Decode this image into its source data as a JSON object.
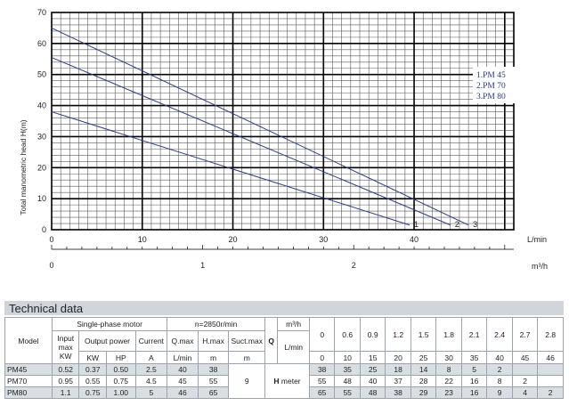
{
  "chart_data": {
    "type": "line",
    "y_axis_label": "Total manometric head H(m)",
    "x_axis_label": "L/min",
    "x2_axis_label": "m³/h",
    "x_ticks": [
      "0",
      "10",
      "20",
      "30",
      "40"
    ],
    "x2_ticks": [
      "0",
      "1",
      "2"
    ],
    "y_ticks": [
      "0",
      "10",
      "20",
      "30",
      "40",
      "50",
      "60",
      "70"
    ],
    "xlim": [
      0,
      51
    ],
    "ylim": [
      0,
      70
    ],
    "legend": [
      "1.PM 45",
      "2.PM 70",
      "3.PM 80"
    ],
    "legend_position": "right",
    "color": "#2e3c85",
    "grid": true,
    "series": [
      {
        "marker": "1",
        "x": [
          0,
          39.5
        ],
        "y": [
          38,
          1.5
        ]
      },
      {
        "marker": "2",
        "x": [
          0,
          44
        ],
        "y": [
          55.5,
          1.5
        ]
      },
      {
        "marker": "3",
        "x": [
          0,
          46
        ],
        "y": [
          65,
          1.5
        ]
      }
    ]
  },
  "section_title": "Technical data",
  "table": {
    "model_label": "Model",
    "single_phase_label": "Single-phase motor",
    "speed_label": "n=2850r/min",
    "input_label_lines": [
      "Input",
      "max",
      "KW"
    ],
    "output_power_label": "Output power",
    "current_label": "Current",
    "qmax_label": "Q.max",
    "hmax_label": "H.max",
    "suctmax_label": "Suct.max",
    "kw_unit": "KW",
    "hp_unit": "HP",
    "a_unit": "A",
    "lmin_unit": "L/min",
    "m_unit": "m",
    "m_unit2": "m",
    "q_label": "Q",
    "m3h_label": "m³/h",
    "lmin_label": "L/min",
    "h_meter_label_b": "H",
    "h_meter_label_n": " meter",
    "suction_value": "9",
    "flow_m3h": [
      "0",
      "0.6",
      "0.9",
      "1.2",
      "1.5",
      "1.8",
      "2.1",
      "2.4",
      "2.7",
      "2.8"
    ],
    "flow_lmin": [
      "0",
      "10",
      "15",
      "20",
      "25",
      "30",
      "35",
      "40",
      "45",
      "46"
    ],
    "rows": [
      {
        "model": "PM45",
        "input": "0.52",
        "kw": "0.37",
        "hp": "0.50",
        "current": "2.5",
        "qmax": "40",
        "hmax": "38",
        "heads": [
          "38",
          "35",
          "25",
          "18",
          "14",
          "8",
          "5",
          "2",
          "",
          ""
        ]
      },
      {
        "model": "PM70",
        "input": "0.95",
        "kw": "0.55",
        "hp": "0.75",
        "current": "4.5",
        "qmax": "45",
        "hmax": "55",
        "heads": [
          "55",
          "48",
          "40",
          "37",
          "28",
          "22",
          "16",
          "8",
          "2",
          ""
        ]
      },
      {
        "model": "PM80",
        "input": "1.1",
        "kw": "0.75",
        "hp": "1.00",
        "current": "5",
        "qmax": "46",
        "hmax": "65",
        "heads": [
          "65",
          "55",
          "48",
          "38",
          "29",
          "23",
          "16",
          "9",
          "4",
          "2"
        ]
      }
    ]
  }
}
